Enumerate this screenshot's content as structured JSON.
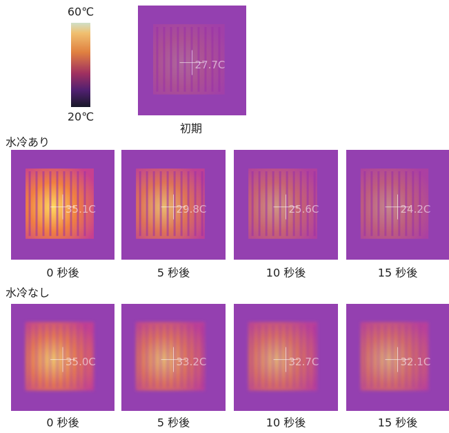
{
  "colorbar": {
    "max": "60℃",
    "min": "20℃"
  },
  "initial": {
    "caption": "初期",
    "temp": "27.7C"
  },
  "groups": [
    {
      "label": "水冷あり",
      "panels": [
        {
          "caption": "0 秒後",
          "temp": "35.1C"
        },
        {
          "caption": "5 秒後",
          "temp": "29.8C"
        },
        {
          "caption": "10 秒後",
          "temp": "25.6C"
        },
        {
          "caption": "15 秒後",
          "temp": "24.2C"
        }
      ]
    },
    {
      "label": "水冷なし",
      "panels": [
        {
          "caption": "0 秒後",
          "temp": "35.0C"
        },
        {
          "caption": "5 秒後",
          "temp": "33.2C"
        },
        {
          "caption": "10 秒後",
          "temp": "32.7C"
        },
        {
          "caption": "15 秒後",
          "temp": "32.1C"
        }
      ]
    }
  ]
}
